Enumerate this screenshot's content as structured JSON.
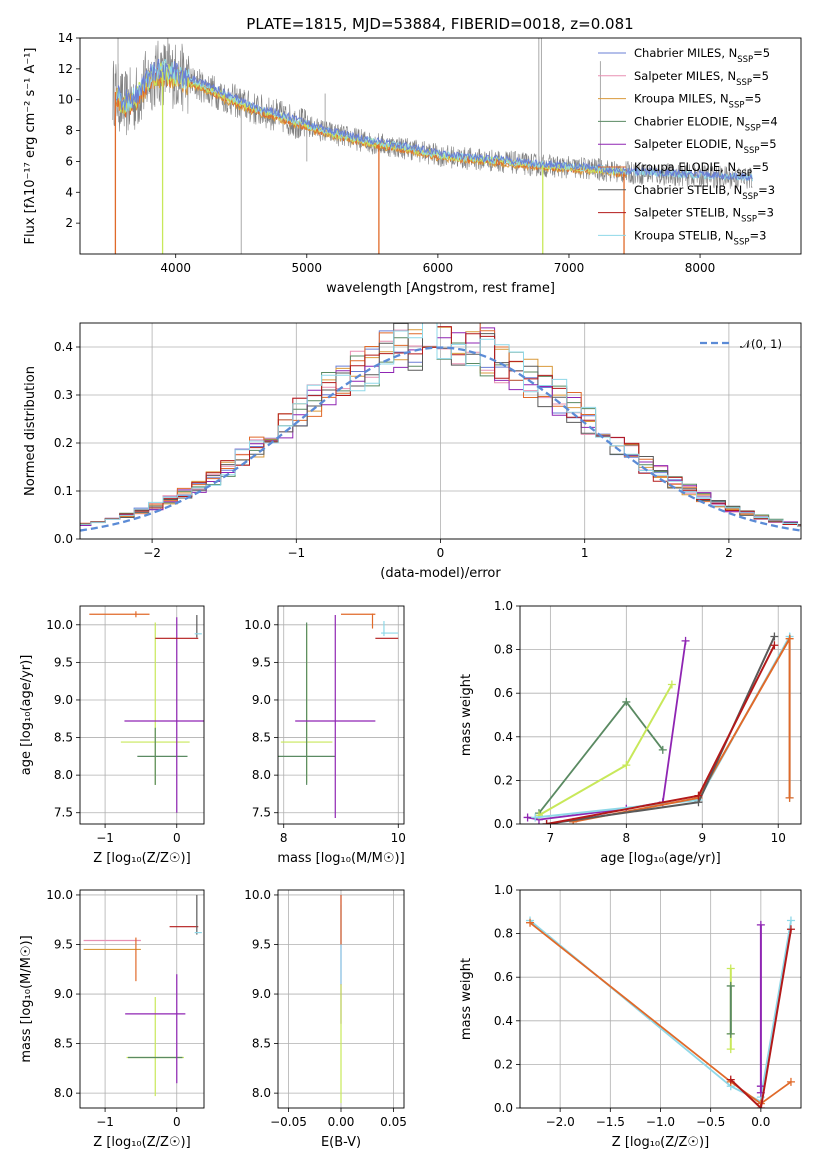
{
  "figure": {
    "title": "PLATE=1815, MJD=53884, FIBERID=0018, z=0.081"
  },
  "colors": {
    "observed": "#808080",
    "models": [
      "#6a7fd6",
      "#e88fb2",
      "#d99a3b",
      "#5a8a62",
      "#8f25b3",
      "#e06a2a",
      "#5a5a5a",
      "#b31a1a",
      "#8fd8e8"
    ]
  },
  "chart_data": [
    {
      "id": "spectrum",
      "type": "line",
      "title": "PLATE=1815, MJD=53884, FIBERID=0018, z=0.081",
      "xlabel": "wavelength [Angstrom, rest frame]",
      "ylabel": "Flux [fλ10⁻¹⁷ erg cm⁻² s⁻¹ A⁻¹]",
      "xlim": [
        3270,
        8770
      ],
      "ylim": [
        0,
        14
      ],
      "xticks": [
        "4000",
        "5000",
        "6000",
        "7000",
        "8000"
      ],
      "yticks": [
        "2",
        "4",
        "6",
        "8",
        "10",
        "12",
        "14"
      ],
      "xtick_values": [
        4000,
        5000,
        6000,
        7000,
        8000
      ],
      "ytick_values": [
        2,
        4,
        6,
        8,
        10,
        12,
        14
      ],
      "grid": false,
      "legend": "top-right",
      "series": [
        {
          "name": "Chabrier MILES, N_SSP=5",
          "sub": "SSP",
          "label_pre": "Chabrier MILES, N",
          "label_post": "=5",
          "x": [
            3540,
            3600,
            3700,
            3800,
            3900,
            4000,
            4100,
            4200,
            4400,
            4600,
            4800,
            5000,
            5200,
            5500,
            5800,
            6000,
            6200,
            6500,
            6700,
            7000,
            7200,
            7400
          ],
          "y": [
            10.5,
            9.6,
            10.1,
            11.4,
            11.8,
            11.6,
            11.2,
            10.9,
            10.1,
            9.4,
            8.9,
            8.3,
            7.8,
            7.2,
            6.8,
            6.4,
            6.2,
            6.0,
            5.8,
            5.6,
            5.5,
            5.3
          ]
        },
        {
          "name": "Salpeter MILES, N_SSP=5",
          "sub": "SSP",
          "label_pre": "Salpeter MILES, N",
          "label_post": "=5"
        },
        {
          "name": "Kroupa MILES, N_SSP=5",
          "sub": "SSP",
          "label_pre": "Kroupa MILES, N",
          "label_post": "=5"
        },
        {
          "name": "Chabrier ELODIE, N_SSP=4",
          "sub": "SSP",
          "label_pre": "Chabrier ELODIE, N",
          "label_post": "=4"
        },
        {
          "name": "Salpeter ELODIE, N_SSP=5",
          "sub": "SSP",
          "label_pre": "Salpeter ELODIE, N",
          "label_post": "=5"
        },
        {
          "name": "Kroupa ELODIE, N_SSP=5",
          "sub": "SSP",
          "label_pre": "Kroupa ELODIE, N",
          "label_post": "=5"
        },
        {
          "name": "Chabrier STELIB, N_SSP=3",
          "sub": "SSP",
          "label_pre": "Chabrier STELIB, N",
          "label_post": "=3"
        },
        {
          "name": "Salpeter STELIB, N_SSP=3",
          "sub": "SSP",
          "label_pre": "Salpeter STELIB, N",
          "label_post": "=3"
        },
        {
          "name": "Kroupa STELIB, N_SSP=3",
          "sub": "SSP",
          "label_pre": "Kroupa STELIB, N",
          "label_post": "=3"
        }
      ]
    },
    {
      "id": "residuals",
      "type": "histogram",
      "xlabel": "(data-model)/error",
      "ylabel": "Normed distribution",
      "xlim": [
        -2.5,
        2.5
      ],
      "ylim": [
        0,
        0.45
      ],
      "xticks": [
        "−2",
        "−1",
        "0",
        "1",
        "2"
      ],
      "yticks": [
        "0.0",
        "0.1",
        "0.2",
        "0.3",
        "0.4"
      ],
      "xtick_values": [
        -2,
        -1,
        0,
        1,
        2
      ],
      "ytick_values": [
        0,
        0.1,
        0.2,
        0.3,
        0.4
      ],
      "grid": true,
      "legend": "top-right",
      "reference": {
        "name": "𝒩(0, 1)",
        "mean": 0,
        "sigma": 1
      },
      "bin_width": 0.1
    },
    {
      "id": "age-vs-Z",
      "type": "scatter",
      "xlabel": "Z [log₁₀(Z/Z☉)]",
      "ylabel": "age  [log₁₀(age/yr)]",
      "xlim": [
        -1.35,
        0.38
      ],
      "ylim": [
        7.35,
        10.25
      ],
      "xticks": [
        "−1",
        "0"
      ],
      "yticks": [
        "7.5",
        "8.0",
        "8.5",
        "9.0",
        "9.5",
        "10.0"
      ],
      "xtick_values": [
        -1,
        0
      ],
      "ytick_values": [
        7.5,
        8.0,
        8.5,
        9.0,
        9.5,
        10.0
      ],
      "grid": true
    },
    {
      "id": "age-vs-mass",
      "type": "scatter",
      "xlabel": "mass [log₁₀(M/M☉)]",
      "xlim": [
        7.9,
        10.1
      ],
      "ylim": [
        7.35,
        10.25
      ],
      "xticks": [
        "8",
        "10"
      ],
      "yticks": [
        "7.5",
        "8.0",
        "8.5",
        "9.0",
        "9.5",
        "10.0"
      ],
      "xtick_values": [
        8,
        10
      ],
      "ytick_values": [
        7.5,
        8.0,
        8.5,
        9.0,
        9.5,
        10.0
      ],
      "grid": true
    },
    {
      "id": "weight-vs-age",
      "type": "line",
      "xlabel": "age  [log₁₀(age/yr)]",
      "ylabel": "mass weight",
      "xlim": [
        6.6,
        10.3
      ],
      "ylim": [
        0,
        1.0
      ],
      "xticks": [
        "7",
        "8",
        "9",
        "10"
      ],
      "yticks": [
        "0.0",
        "0.2",
        "0.4",
        "0.6",
        "0.8",
        "1.0"
      ],
      "xtick_values": [
        7,
        8,
        9,
        10
      ],
      "ytick_values": [
        0,
        0.2,
        0.4,
        0.6,
        0.8,
        1.0
      ],
      "grid": true,
      "series": [
        {
          "x": [
            6.85,
            8.0,
            8.48
          ],
          "y": [
            0.05,
            0.56,
            0.34
          ]
        },
        {
          "x": [
            6.7,
            6.85,
            8.0,
            8.48,
            8.78
          ],
          "y": [
            0.03,
            0.02,
            0.07,
            0.1,
            0.84
          ]
        },
        {
          "x": [
            6.85,
            8.0,
            8.6
          ],
          "y": [
            0.04,
            0.27,
            0.64
          ]
        },
        {
          "x": [
            6.8,
            8.95,
            10.15,
            10.15
          ],
          "y": [
            0.03,
            0.11,
            0.86,
            0.12
          ]
        },
        {
          "x": [
            7.3,
            8.95,
            10.15,
            10.15
          ],
          "y": [
            0.01,
            0.12,
            0.85,
            0.12
          ]
        },
        {
          "x": [
            6.95,
            8.95,
            9.95
          ],
          "y": [
            0.0,
            0.1,
            0.86
          ]
        },
        {
          "x": [
            6.95,
            8.95,
            9.95
          ],
          "y": [
            0.0,
            0.13,
            0.82
          ]
        }
      ]
    },
    {
      "id": "mass-vs-Z",
      "type": "scatter",
      "xlabel": "Z [log₁₀(Z/Z☉)]",
      "ylabel": "mass [log₁₀(M/M☉)]",
      "xlim": [
        -1.35,
        0.38
      ],
      "ylim": [
        7.85,
        10.05
      ],
      "xticks": [
        "−1",
        "0"
      ],
      "yticks": [
        "8.0",
        "8.5",
        "9.0",
        "9.5",
        "10.0"
      ],
      "xtick_values": [
        -1,
        0
      ],
      "ytick_values": [
        8.0,
        8.5,
        9.0,
        9.5,
        10.0
      ],
      "grid": true
    },
    {
      "id": "mass-vs-EBV",
      "type": "scatter",
      "xlabel": "E(B-V)",
      "xlim": [
        -0.06,
        0.06
      ],
      "ylim": [
        7.85,
        10.05
      ],
      "xticks": [
        "−0.05",
        "0.00",
        "0.05"
      ],
      "yticks": [
        "8.0",
        "8.5",
        "9.0",
        "9.5",
        "10.0"
      ],
      "xtick_values": [
        -0.05,
        0,
        0.05
      ],
      "ytick_values": [
        8.0,
        8.5,
        9.0,
        9.5,
        10.0
      ],
      "grid": true
    },
    {
      "id": "weight-vs-Z",
      "type": "line",
      "xlabel": "Z [log₁₀(Z/Z☉)]",
      "ylabel": "mass weight",
      "xlim": [
        -2.4,
        0.4
      ],
      "ylim": [
        0,
        1.0
      ],
      "xticks": [
        "−2.0",
        "−1.5",
        "−1.0",
        "−0.5",
        "0.0"
      ],
      "yticks": [
        "0.0",
        "0.2",
        "0.4",
        "0.6",
        "0.8",
        "1.0"
      ],
      "xtick_values": [
        -2.0,
        -1.5,
        -1.0,
        -0.5,
        0.0
      ],
      "ytick_values": [
        0,
        0.2,
        0.4,
        0.6,
        0.8,
        1.0
      ],
      "grid": true,
      "series": [
        {
          "x": [
            -2.3,
            -0.3,
            0.0,
            0.0,
            0.3
          ],
          "y": [
            0.86,
            0.1,
            0.03,
            0.05,
            0.86
          ]
        },
        {
          "x": [
            -2.3,
            -0.3,
            0.0,
            0.3
          ],
          "y": [
            0.85,
            0.12,
            0.02,
            0.12
          ]
        },
        {
          "x": [
            -0.3,
            -0.3,
            -0.3
          ],
          "y": [
            0.64,
            0.34,
            0.27
          ]
        },
        {
          "x": [
            -0.3,
            -0.3
          ],
          "y": [
            0.56,
            0.34
          ]
        },
        {
          "x": [
            0.0,
            0.0,
            0.0
          ],
          "y": [
            0.84,
            0.1,
            0.07
          ]
        },
        {
          "x": [
            -0.3,
            0.0,
            0.3
          ],
          "y": [
            0.13,
            0.0,
            0.82
          ]
        }
      ]
    }
  ]
}
